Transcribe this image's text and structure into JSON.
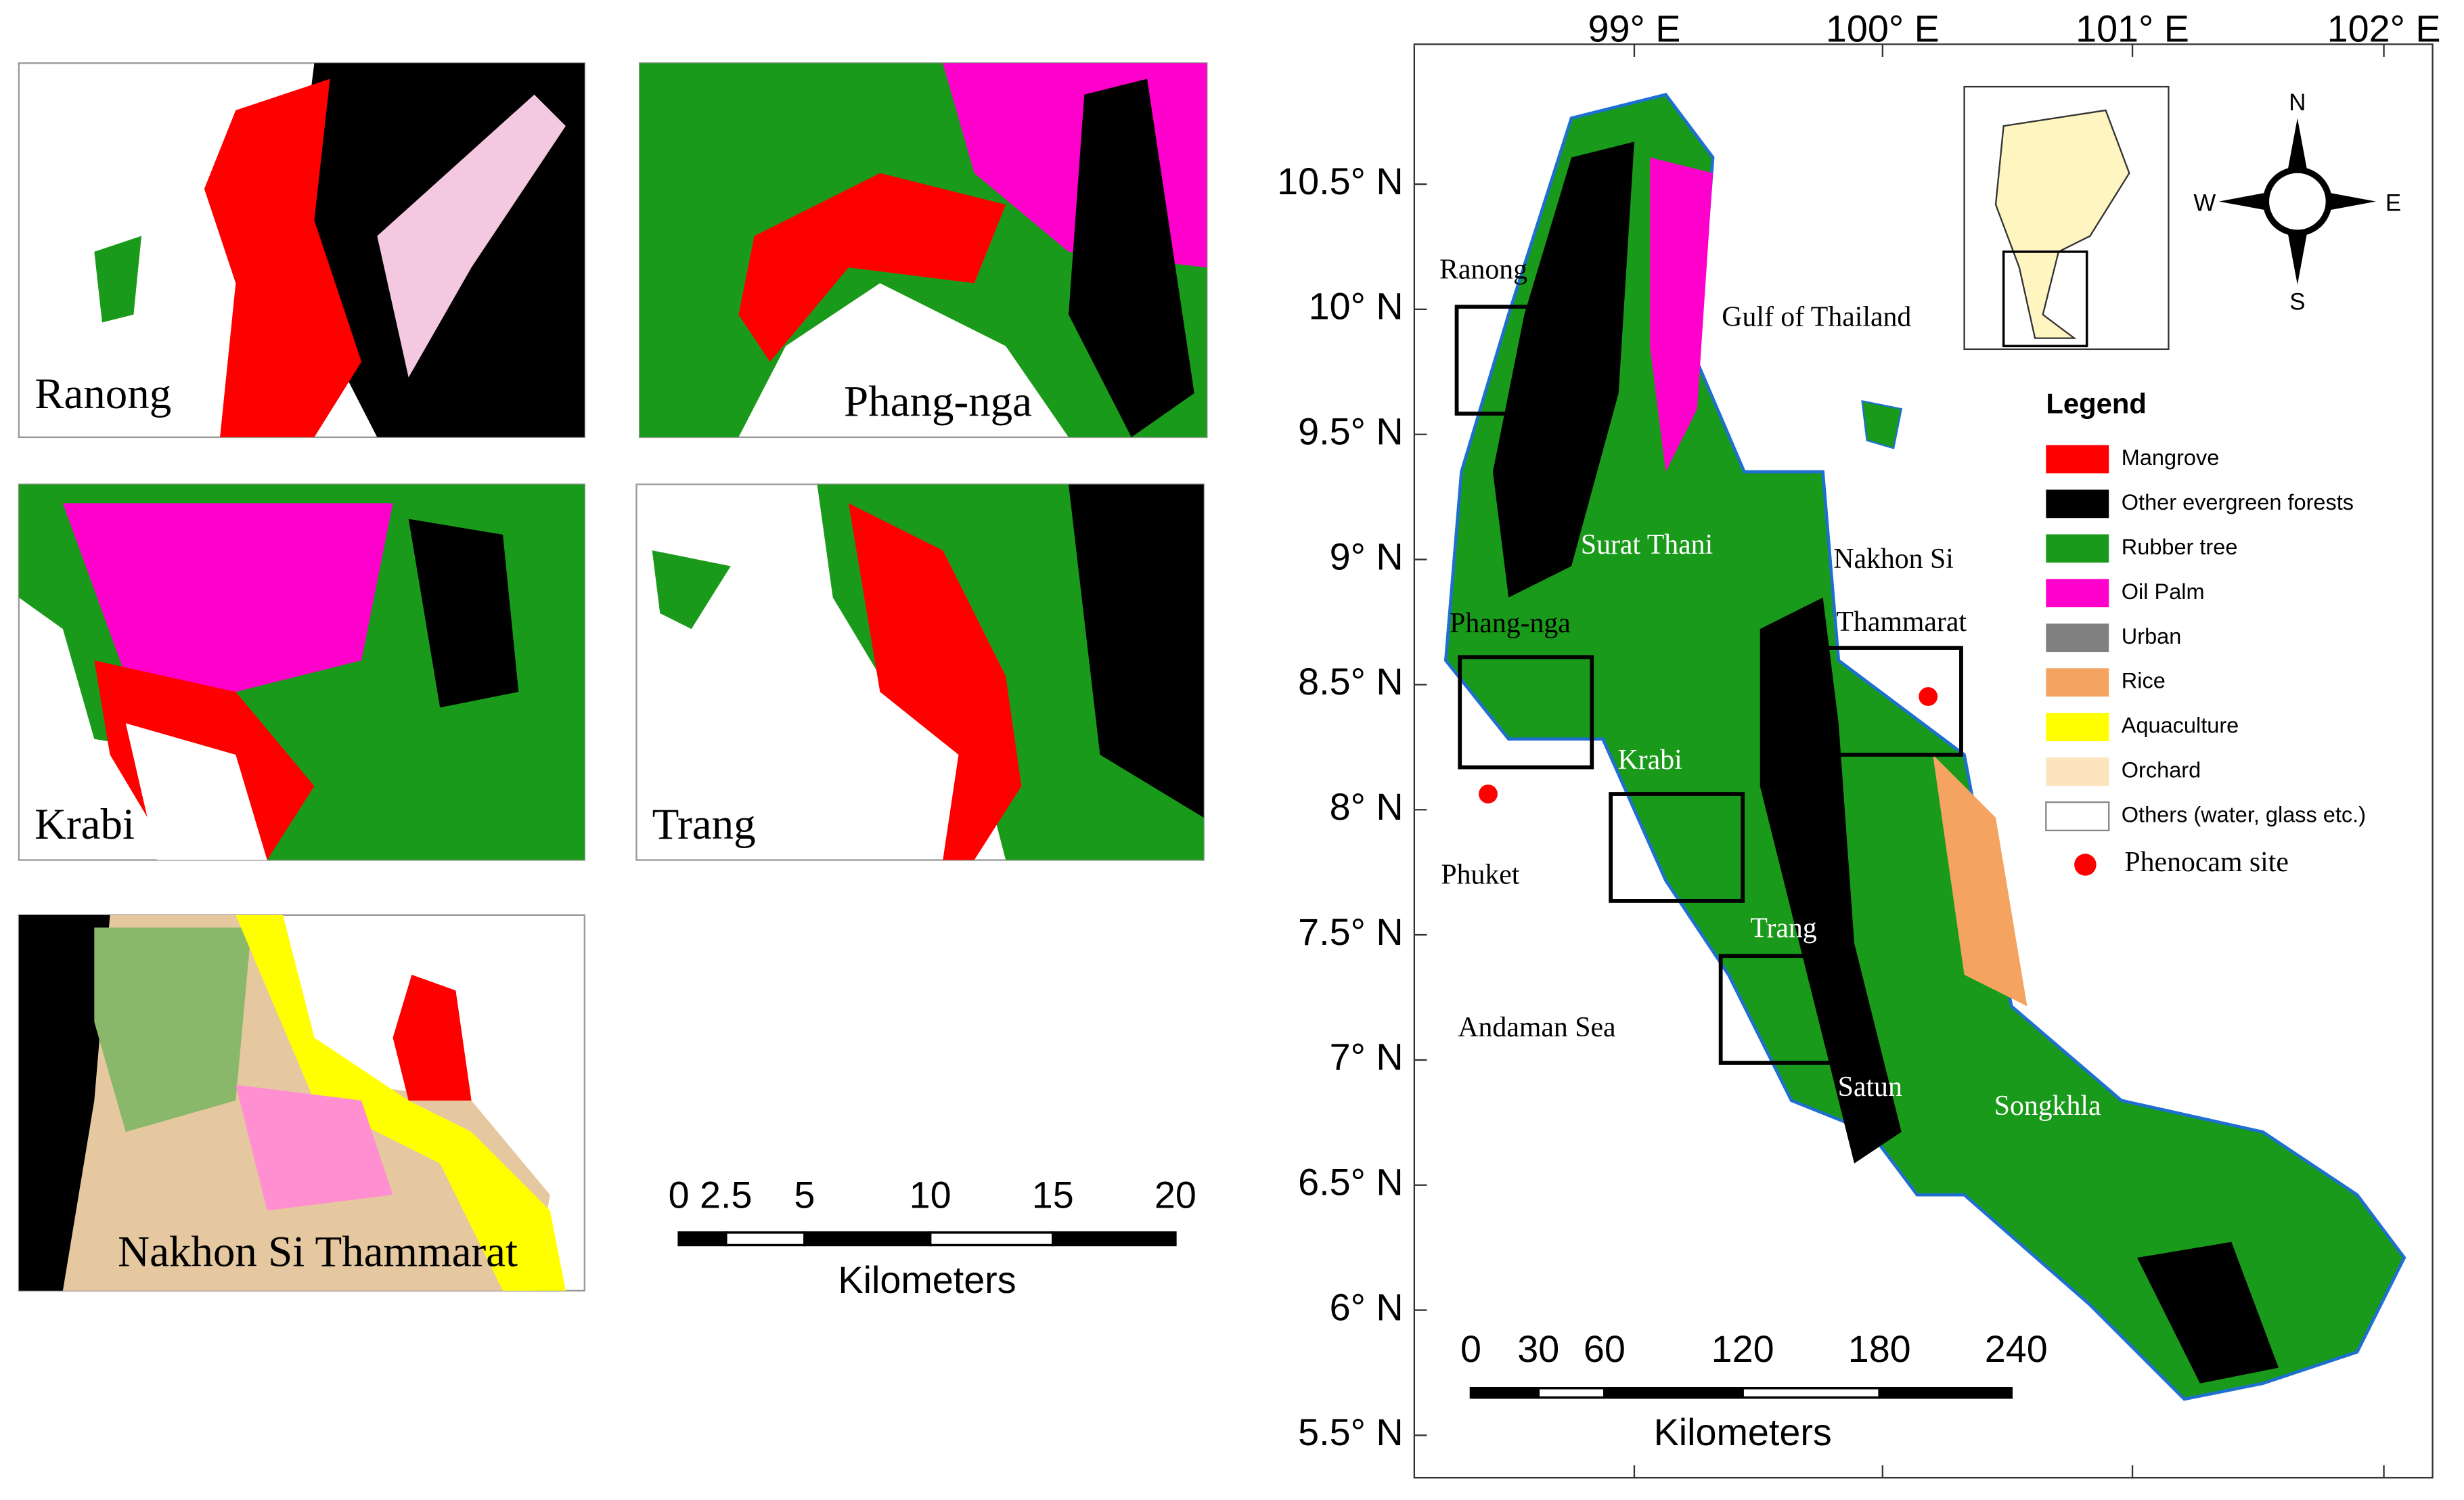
{
  "insets": [
    {
      "label": "Ranong"
    },
    {
      "label": "Phang-nga"
    },
    {
      "label": "Krabi"
    },
    {
      "label": "Trang"
    },
    {
      "label": "Nakhon Si Thammarat"
    }
  ],
  "inset_scale": {
    "ticks": [
      "0",
      "2.5",
      "5",
      "10",
      "15",
      "20"
    ],
    "unit": "Kilometers"
  },
  "main_map": {
    "lon_labels": [
      "99° E",
      "100° E",
      "101° E",
      "102° E"
    ],
    "lat_labels": [
      "10.5° N",
      "10° N",
      "9.5° N",
      "9° N",
      "8.5° N",
      "8° N",
      "7.5° N",
      "7° N",
      "6.5° N",
      "6° N",
      "5.5° N"
    ],
    "places": [
      "Ranong",
      "Gulf of Thailand",
      "Surat Thani",
      "Nakhon Si",
      "Thammarat",
      "Phang-nga",
      "Krabi",
      "Phuket",
      "Trang",
      "Andaman Sea",
      "Satun",
      "Songkhla"
    ],
    "scale": {
      "ticks": [
        "0",
        "30",
        "60",
        "120",
        "180",
        "240"
      ],
      "unit": "Kilometers"
    },
    "compass": [
      "N",
      "W",
      "E",
      "S"
    ]
  },
  "legend": {
    "title": "Legend",
    "items": [
      {
        "label": "Mangrove",
        "color": "#ff0000"
      },
      {
        "label": "Other evergreen forests",
        "color": "#000000"
      },
      {
        "label": "Rubber tree",
        "color": "#1a9a1a"
      },
      {
        "label": "Oil Palm",
        "color": "#ff00cc"
      },
      {
        "label": "Urban",
        "color": "#808080"
      },
      {
        "label": "Rice",
        "color": "#f4a460"
      },
      {
        "label": "Aquaculture",
        "color": "#ffff00"
      },
      {
        "label": "Orchard",
        "color": "#fde3be"
      },
      {
        "label": "Others (water, glass etc.)",
        "color": "#ffffff"
      }
    ],
    "marker": {
      "label": "Phenocam site",
      "color": "#ff0000"
    }
  }
}
